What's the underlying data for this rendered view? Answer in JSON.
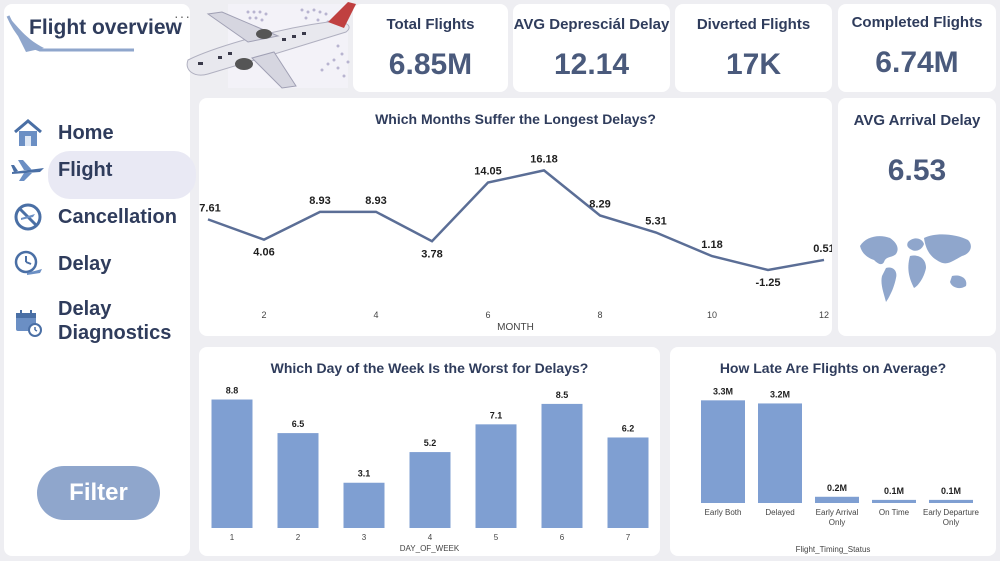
{
  "app": {
    "title": "Flight overview"
  },
  "nav": {
    "items": [
      {
        "label": "Home",
        "icon": "home-icon"
      },
      {
        "label": "Flight",
        "icon": "airplane-icon"
      },
      {
        "label": "Cancellation",
        "icon": "cancel-plane-icon"
      },
      {
        "label": "Delay",
        "icon": "clock-plane-icon"
      },
      {
        "label": "Delay Diagnostics",
        "icon": "calendar-clock-icon"
      }
    ],
    "active": "Flight",
    "filter_label": "Filter"
  },
  "kpis": {
    "total_flights": {
      "label": "Total Flights",
      "value": "6.85M"
    },
    "avg_departure_delay": {
      "label": "AVG Depresciál Delay",
      "value": "12.14"
    },
    "diverted_flights": {
      "label": "Diverted Flights",
      "value": "17K"
    },
    "completed_flights": {
      "label": "Completed Flights",
      "value": "6.74M"
    },
    "avg_arrival_delay": {
      "label": "AVG Arrival Delay",
      "value": "6.53"
    }
  },
  "colors": {
    "accent": "#7f9fd2",
    "line": "#5b6e96",
    "title": "#2f3c5c",
    "value": "#4a5a7c"
  },
  "chart_data": [
    {
      "type": "line",
      "title": "Which Months Suffer the Longest Delays?",
      "xlabel": "MONTH",
      "ylabel": "",
      "x": [
        1,
        2,
        3,
        4,
        5,
        6,
        7,
        8,
        9,
        10,
        11,
        12
      ],
      "values": [
        7.61,
        4.06,
        8.93,
        8.93,
        3.78,
        14.05,
        16.18,
        8.29,
        5.31,
        1.18,
        -1.25,
        0.51
      ],
      "labels": [
        "7.61",
        "4.06",
        "8.93",
        "8.93",
        "3.78",
        "14.05",
        "16.18",
        "8.29",
        "5.31",
        "1.18",
        "-1.25",
        "0.51"
      ],
      "x_ticks": [
        "2",
        "4",
        "6",
        "8",
        "10",
        "12"
      ],
      "ylim": [
        -3,
        18
      ]
    },
    {
      "type": "bar",
      "title": "Which Day of the Week Is the Worst for Delays?",
      "xlabel": "DAY_OF_WEEK",
      "ylabel": "",
      "categories": [
        "1",
        "2",
        "3",
        "4",
        "5",
        "6",
        "7"
      ],
      "values": [
        8.8,
        6.5,
        3.1,
        5.2,
        7.1,
        8.5,
        6.2
      ],
      "labels": [
        "8.8",
        "6.5",
        "3.1",
        "5.2",
        "7.1",
        "8.5",
        "6.2"
      ],
      "ylim": [
        0,
        10
      ]
    },
    {
      "type": "bar",
      "title": "How Late Are Flights on Average?",
      "xlabel": "Flight_Timing_Status",
      "ylabel": "",
      "categories": [
        "Early Both",
        "Delayed",
        "Early Arrival Only",
        "On Time",
        "Early Departure Only"
      ],
      "values": [
        3.3,
        3.2,
        0.2,
        0.1,
        0.1
      ],
      "labels": [
        "3.3M",
        "3.2M",
        "0.2M",
        "0.1M",
        "0.1M"
      ],
      "ylim": [
        0,
        3.6
      ]
    }
  ]
}
